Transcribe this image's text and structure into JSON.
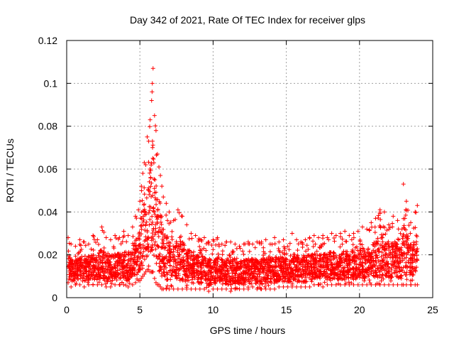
{
  "chart_data": {
    "type": "scatter",
    "title": "Day 342 of 2021, Rate Of TEC Index for receiver glps",
    "xlabel": "GPS time / hours",
    "ylabel": "ROTI / TECUs",
    "xlim": [
      0,
      25
    ],
    "ylim": [
      0,
      0.12
    ],
    "xticks": [
      0,
      5,
      10,
      15,
      20,
      25
    ],
    "yticks": [
      0,
      0.02,
      0.04,
      0.06,
      0.08,
      0.1,
      0.12
    ],
    "xtick_labels": [
      "0",
      "5",
      "10",
      "15",
      "20",
      "25"
    ],
    "ytick_labels": [
      "0",
      "0.02",
      "0.04",
      "0.06",
      "0.08",
      "0.1",
      "0.12"
    ],
    "grid": true,
    "marker": "+",
    "color": "#ff0000",
    "series": [
      {
        "name": "ROTI",
        "x": [
          0.1,
          0.3,
          0.6,
          0.9,
          1.2,
          1.5,
          1.8,
          2.1,
          2.4,
          2.7,
          3.0,
          3.3,
          3.6,
          3.9,
          4.2,
          4.5,
          4.7,
          4.9,
          5.0,
          5.1,
          5.2,
          5.3,
          5.4,
          5.5,
          5.6,
          5.7,
          5.8,
          5.85,
          5.9,
          6.0,
          6.1,
          6.2,
          6.3,
          6.4,
          6.5,
          6.6,
          6.8,
          7.0,
          7.3,
          7.6,
          7.9,
          8.2,
          8.5,
          8.8,
          9.1,
          9.4,
          9.7,
          10.0,
          10.3,
          10.6,
          10.9,
          11.2,
          11.5,
          11.8,
          12.1,
          12.4,
          12.7,
          13.0,
          13.3,
          13.6,
          13.9,
          14.2,
          14.5,
          14.8,
          15.1,
          15.4,
          15.7,
          16.0,
          16.3,
          16.6,
          16.9,
          17.2,
          17.5,
          17.8,
          18.1,
          18.4,
          18.7,
          19.0,
          19.3,
          19.6,
          19.9,
          20.2,
          20.5,
          20.8,
          21.1,
          21.4,
          21.7,
          22.0,
          22.3,
          22.6,
          22.9,
          23.0,
          23.2,
          23.5,
          23.8,
          23.95
        ],
        "y": [
          0.028,
          0.025,
          0.024,
          0.027,
          0.026,
          0.025,
          0.029,
          0.027,
          0.033,
          0.028,
          0.027,
          0.029,
          0.028,
          0.031,
          0.029,
          0.033,
          0.038,
          0.041,
          0.045,
          0.052,
          0.058,
          0.063,
          0.062,
          0.075,
          0.073,
          0.083,
          0.092,
          0.1,
          0.107,
          0.085,
          0.078,
          0.067,
          0.061,
          0.057,
          0.052,
          0.047,
          0.044,
          0.04,
          0.036,
          0.041,
          0.038,
          0.034,
          0.03,
          0.029,
          0.027,
          0.028,
          0.026,
          0.027,
          0.028,
          0.025,
          0.026,
          0.026,
          0.025,
          0.024,
          0.025,
          0.026,
          0.025,
          0.026,
          0.026,
          0.027,
          0.025,
          0.028,
          0.026,
          0.027,
          0.024,
          0.03,
          0.027,
          0.026,
          0.027,
          0.028,
          0.029,
          0.028,
          0.029,
          0.028,
          0.03,
          0.029,
          0.03,
          0.031,
          0.029,
          0.03,
          0.031,
          0.033,
          0.032,
          0.035,
          0.037,
          0.041,
          0.04,
          0.034,
          0.038,
          0.036,
          0.032,
          0.053,
          0.045,
          0.035,
          0.04,
          0.043
        ],
        "y_low": [
          0.007,
          0.005,
          0.006,
          0.006,
          0.005,
          0.006,
          0.006,
          0.006,
          0.006,
          0.005,
          0.005,
          0.006,
          0.006,
          0.006,
          0.005,
          0.006,
          0.007,
          0.008,
          0.008,
          0.009,
          0.01,
          0.011,
          0.012,
          0.013,
          0.013,
          0.012,
          0.012,
          0.012,
          0.012,
          0.009,
          0.007,
          0.006,
          0.006,
          0.005,
          0.004,
          0.004,
          0.004,
          0.004,
          0.004,
          0.004,
          0.004,
          0.004,
          0.004,
          0.004,
          0.004,
          0.004,
          0.003,
          0.004,
          0.004,
          0.004,
          0.004,
          0.003,
          0.004,
          0.004,
          0.004,
          0.004,
          0.005,
          0.004,
          0.004,
          0.004,
          0.004,
          0.004,
          0.005,
          0.005,
          0.005,
          0.005,
          0.005,
          0.005,
          0.005,
          0.005,
          0.006,
          0.006,
          0.005,
          0.006,
          0.006,
          0.006,
          0.006,
          0.006,
          0.006,
          0.006,
          0.006,
          0.006,
          0.006,
          0.006,
          0.006,
          0.006,
          0.006,
          0.006,
          0.006,
          0.006,
          0.006,
          0.006,
          0.006,
          0.006,
          0.006,
          0.006
        ]
      }
    ]
  }
}
